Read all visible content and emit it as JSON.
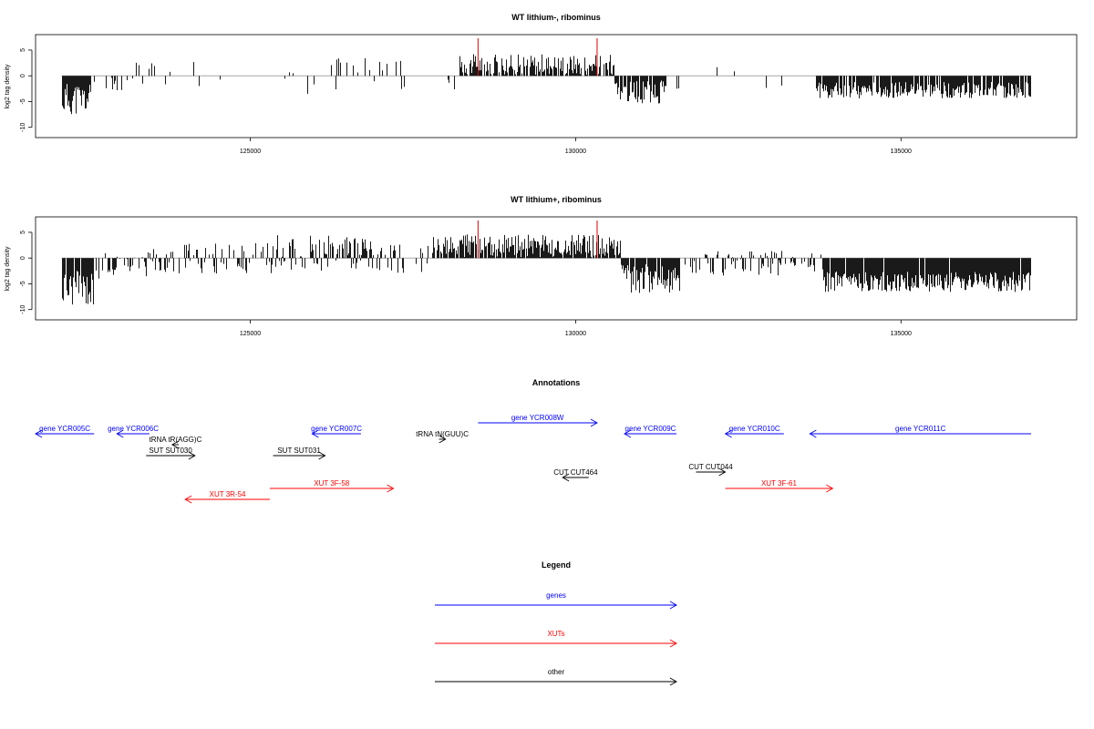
{
  "chart_data": [
    {
      "type": "bar",
      "title": "WT lithium-, ribominus",
      "ylabel": "log2 tag density",
      "xlim": [
        121700,
        137700
      ],
      "ylim": [
        -12,
        8
      ],
      "x_ticks": [
        125000,
        130000,
        135000
      ],
      "y_ticks": [
        5,
        0,
        -5,
        -10
      ],
      "markers": [
        128500,
        130330
      ],
      "marker_color": "#e00000",
      "bar_color": "#000000",
      "baseline_color": "#999999",
      "segments": [
        {
          "start": 122100,
          "end": 122550,
          "mean": -4.5,
          "amp": 3.2,
          "density": 0.92,
          "seed": 11
        },
        {
          "start": 122550,
          "end": 123200,
          "mean": -1.5,
          "amp": 1.6,
          "density": 0.22,
          "seed": 12
        },
        {
          "start": 123200,
          "end": 123800,
          "mean": 0.0,
          "amp": 2.6,
          "density": 0.12,
          "seed": 13
        },
        {
          "start": 123800,
          "end": 125500,
          "mean": 0.0,
          "amp": 2.2,
          "density": 0.04,
          "seed": 14
        },
        {
          "start": 125500,
          "end": 127300,
          "mean": 0.4,
          "amp": 3.0,
          "density": 0.16,
          "seed": 15
        },
        {
          "start": 127300,
          "end": 128200,
          "mean": 0.3,
          "amp": 2.5,
          "density": 0.1,
          "seed": 16
        },
        {
          "start": 128200,
          "end": 130600,
          "mean": 2.2,
          "amp": 2.0,
          "density": 0.8,
          "seed": 17
        },
        {
          "start": 130600,
          "end": 131400,
          "mean": -3.2,
          "amp": 2.3,
          "density": 0.85,
          "seed": 18
        },
        {
          "start": 131400,
          "end": 133700,
          "mean": 0.0,
          "amp": 2.3,
          "density": 0.04,
          "seed": 19
        },
        {
          "start": 133700,
          "end": 137000,
          "mean": -2.8,
          "amp": 1.6,
          "density": 0.88,
          "seed": 20
        }
      ]
    },
    {
      "type": "bar",
      "title": "WT lithium+, ribominus",
      "ylabel": "log2 tag density",
      "xlim": [
        121700,
        137700
      ],
      "ylim": [
        -12,
        8
      ],
      "x_ticks": [
        125000,
        130000,
        135000
      ],
      "y_ticks": [
        5,
        0,
        -5,
        -10
      ],
      "markers": [
        128500,
        130330
      ],
      "marker_color": "#e00000",
      "bar_color": "#000000",
      "baseline_color": "#999999",
      "segments": [
        {
          "start": 122100,
          "end": 122600,
          "mean": -5.8,
          "amp": 3.5,
          "density": 0.95,
          "seed": 31
        },
        {
          "start": 122600,
          "end": 123500,
          "mean": -1.4,
          "amp": 2.6,
          "density": 0.4,
          "seed": 32
        },
        {
          "start": 123500,
          "end": 125400,
          "mean": 0.3,
          "amp": 2.6,
          "density": 0.42,
          "seed": 33
        },
        {
          "start": 125400,
          "end": 126900,
          "mean": 1.0,
          "amp": 3.5,
          "density": 0.62,
          "seed": 34
        },
        {
          "start": 126900,
          "end": 127800,
          "mean": 0.2,
          "amp": 2.4,
          "density": 0.26,
          "seed": 35
        },
        {
          "start": 127800,
          "end": 130700,
          "mean": 2.4,
          "amp": 2.2,
          "density": 0.86,
          "seed": 36
        },
        {
          "start": 130700,
          "end": 131600,
          "mean": -4.0,
          "amp": 2.8,
          "density": 0.92,
          "seed": 37
        },
        {
          "start": 131600,
          "end": 133800,
          "mean": -1.0,
          "amp": 2.4,
          "density": 0.4,
          "seed": 38
        },
        {
          "start": 133800,
          "end": 137000,
          "mean": -4.6,
          "amp": 2.0,
          "density": 0.97,
          "seed": 39
        }
      ]
    }
  ],
  "annotations": {
    "title": "Annotations",
    "features": [
      {
        "label": "gene YCR005C",
        "start": 121700,
        "end": 122600,
        "strand": "-",
        "row": 1,
        "color": "#0000ff"
      },
      {
        "label": "gene YCR006C",
        "start": 122950,
        "end": 123450,
        "strand": "-",
        "row": 1,
        "color": "#0000ff"
      },
      {
        "label": "gene YCR007C",
        "start": 125950,
        "end": 126700,
        "strand": "-",
        "row": 1,
        "color": "#0000ff"
      },
      {
        "label": "gene YCR008W",
        "start": 128500,
        "end": 130330,
        "strand": "+",
        "row": 0,
        "color": "#0000ff"
      },
      {
        "label": "gene YCR009C",
        "start": 130750,
        "end": 131550,
        "strand": "-",
        "row": 1,
        "color": "#0000ff"
      },
      {
        "label": "gene YCR010C",
        "start": 132300,
        "end": 133200,
        "strand": "-",
        "row": 1,
        "color": "#0000ff"
      },
      {
        "label": "gene YCR011C",
        "start": 133600,
        "end": 137000,
        "strand": "-",
        "row": 1,
        "color": "#0000ff"
      },
      {
        "label": "tRNA tR(AGG)C",
        "start": 123800,
        "end": 123900,
        "strand": "-",
        "row": 2,
        "color": "#000000"
      },
      {
        "label": "SUT SUT030",
        "start": 123400,
        "end": 124150,
        "strand": "+",
        "row": 3,
        "color": "#000000"
      },
      {
        "label": "tRNA tN(GUU)C",
        "start": 127900,
        "end": 128000,
        "strand": "+",
        "row": 1.5,
        "color": "#000000"
      },
      {
        "label": "SUT SUT031",
        "start": 125350,
        "end": 126150,
        "strand": "+",
        "row": 3,
        "color": "#000000"
      },
      {
        "label": "CUT CUT464",
        "start": 129800,
        "end": 130200,
        "strand": "-",
        "row": 5,
        "color": "#000000"
      },
      {
        "label": "CUT CUT044",
        "start": 131850,
        "end": 132300,
        "strand": "+",
        "row": 4.5,
        "color": "#000000"
      },
      {
        "label": "XUT 3F-58",
        "start": 125300,
        "end": 127200,
        "strand": "+",
        "row": 6,
        "color": "#ff0000"
      },
      {
        "label": "XUT 3R-54",
        "start": 124000,
        "end": 125300,
        "strand": "-",
        "row": 7,
        "color": "#ff0000"
      },
      {
        "label": "XUT 3F-61",
        "start": 132300,
        "end": 133950,
        "strand": "+",
        "row": 6,
        "color": "#ff0000"
      }
    ]
  },
  "legend": {
    "title": "Legend",
    "items": [
      {
        "label": "genes",
        "color": "#0000ff"
      },
      {
        "label": "XUTs",
        "color": "#ff0000"
      },
      {
        "label": "other",
        "color": "#000000"
      }
    ]
  }
}
